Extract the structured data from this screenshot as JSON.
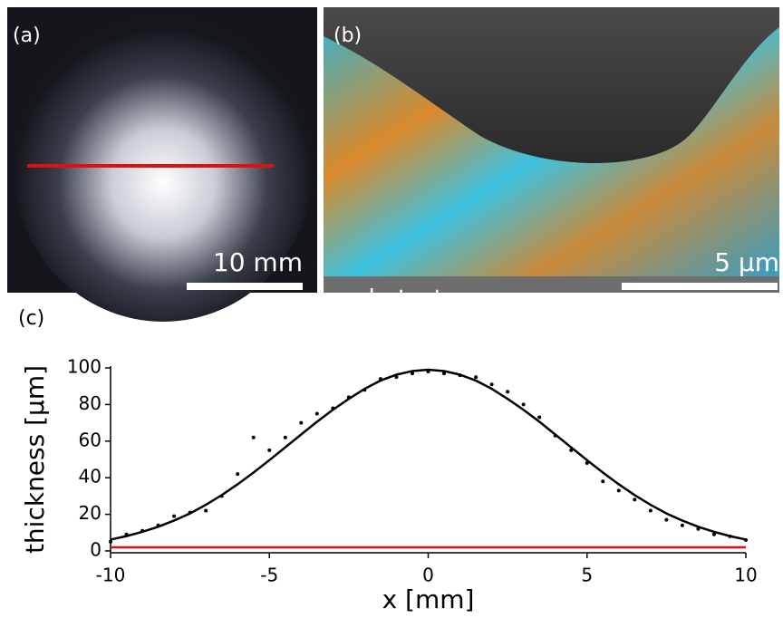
{
  "panels": {
    "a": {
      "label": "(a)",
      "scale": "10 mm"
    },
    "b": {
      "label": "(b)",
      "scale": "5 µm",
      "substrate": "substrate"
    },
    "c": {
      "label": "(c)"
    }
  },
  "chart_data": {
    "type": "scatter",
    "x_label": "x [mm]",
    "y_label": "thickness [µm]",
    "x": [
      -10,
      -9.5,
      -9,
      -8.5,
      -8,
      -7.5,
      -7,
      -6.5,
      -6,
      -5.5,
      -5,
      -4.5,
      -4,
      -3.5,
      -3,
      -2.5,
      -2,
      -1.5,
      -1,
      -0.5,
      0,
      0.5,
      1,
      1.5,
      2,
      2.5,
      3,
      3.5,
      4,
      4.5,
      5,
      5.5,
      6,
      6.5,
      7,
      7.5,
      8,
      8.5,
      9,
      9.5,
      10
    ],
    "series": [
      {
        "type": "scatter",
        "color": "#000000",
        "values": [
          5,
          9,
          11,
          14,
          19,
          21,
          22,
          30,
          42,
          62,
          55,
          62,
          70,
          75,
          78,
          84,
          88,
          94,
          95,
          97,
          98,
          97,
          96,
          95,
          91,
          87,
          80,
          73,
          63,
          55,
          48,
          38,
          33,
          28,
          22,
          17,
          14,
          12,
          9,
          8,
          6
        ]
      },
      {
        "type": "line",
        "color": "#000000",
        "values": [
          6.2,
          8.1,
          10.4,
          13.2,
          16.6,
          20.5,
          25.2,
          30.5,
          36.4,
          42.8,
          49.6,
          56.6,
          63.6,
          70.6,
          77.1,
          83.1,
          88.6,
          93.1,
          96.3,
          98.3,
          99,
          98.3,
          96.3,
          93.1,
          88.6,
          83.1,
          77.1,
          70.6,
          63.6,
          56.6,
          49.6,
          42.8,
          36.4,
          30.5,
          25.2,
          20.5,
          16.6,
          13.2,
          10.4,
          8.1,
          6.2
        ]
      },
      {
        "type": "line",
        "color": "#e01010",
        "values": [
          2,
          2,
          2,
          2,
          2,
          2,
          2,
          2,
          2,
          2,
          2,
          2,
          2,
          2,
          2,
          2,
          2,
          2,
          2,
          2,
          2,
          2,
          2,
          2,
          2,
          2,
          2,
          2,
          2,
          2,
          2,
          2,
          2,
          2,
          2,
          2,
          2,
          2,
          2,
          2,
          2
        ]
      }
    ],
    "xlim": [
      -10,
      10
    ],
    "ylim": [
      -1,
      101
    ],
    "xticks": [
      -10,
      -5,
      0,
      5,
      10
    ],
    "yticks": [
      0,
      20,
      40,
      60,
      80,
      100
    ]
  }
}
